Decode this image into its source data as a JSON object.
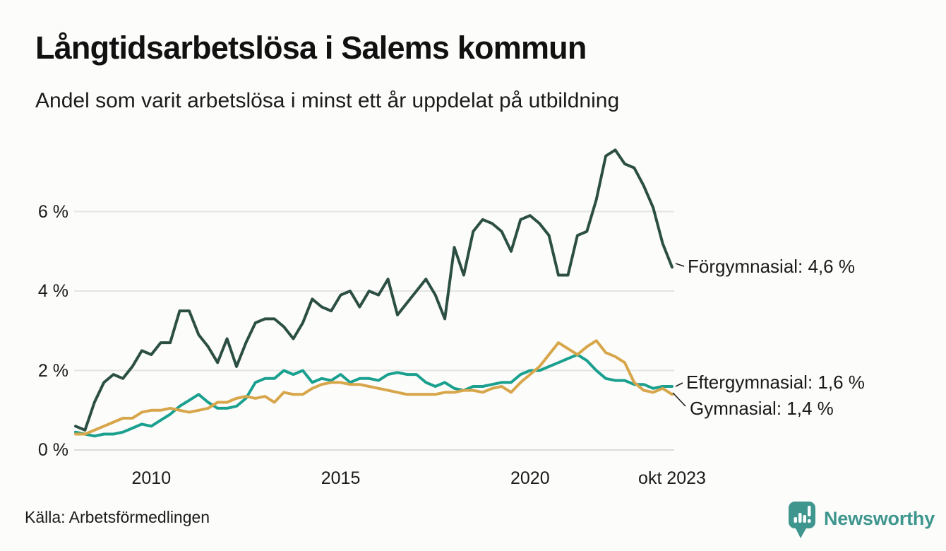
{
  "header": {
    "title": "Långtidsarbetslösa i Salems kommun",
    "subtitle": "Andel som varit arbetslösa i minst ett år uppdelat på utbildning"
  },
  "chart_data": {
    "type": "line",
    "title": "Långtidsarbetslösa i Salems kommun",
    "subtitle": "Andel som varit arbetslösa i minst ett år uppdelat på utbildning",
    "unit": "%",
    "grid": "horizontal-only",
    "legend_position": "right-end-labels",
    "x_axis": {
      "ticks": [
        {
          "label": "2010",
          "year": 2010
        },
        {
          "label": "2015",
          "year": 2015
        },
        {
          "label": "2020",
          "year": 2020
        },
        {
          "label": "okt 2023",
          "year": 2023.75
        }
      ]
    },
    "y_axis": {
      "ticks": [
        {
          "label": "0 %",
          "value": 0
        },
        {
          "label": "2 %",
          "value": 2
        },
        {
          "label": "4 %",
          "value": 4
        },
        {
          "label": "6 %",
          "value": 6
        }
      ],
      "range": [
        0,
        7.8
      ]
    },
    "time_range": {
      "start": 2008.0,
      "end": 2023.75,
      "step": 0.25,
      "note": "quarterly estimates read from monthly line, Jan 2008 - Oct 2023"
    },
    "series": [
      {
        "name": "Förgymnasial",
        "color": "#2c4f44",
        "end_label": "Förgymnasial: 4,6 %",
        "end_value": "4,6 %",
        "values": [
          0.6,
          0.5,
          1.2,
          1.7,
          1.9,
          1.8,
          2.1,
          2.5,
          2.4,
          2.7,
          2.7,
          3.5,
          3.5,
          2.9,
          2.6,
          2.2,
          2.8,
          2.1,
          2.7,
          3.2,
          3.3,
          3.3,
          3.1,
          2.8,
          3.2,
          3.8,
          3.6,
          3.5,
          3.9,
          4.0,
          3.6,
          4.0,
          3.9,
          4.3,
          3.4,
          3.7,
          4.0,
          4.3,
          3.9,
          3.3,
          5.1,
          4.4,
          5.5,
          5.8,
          5.7,
          5.5,
          5.0,
          5.8,
          5.9,
          5.7,
          5.4,
          4.4,
          4.4,
          5.4,
          5.5,
          6.3,
          7.4,
          7.55,
          7.2,
          7.1,
          6.65,
          6.1,
          5.2,
          4.6
        ]
      },
      {
        "name": "Eftergymnasial",
        "color": "#1aa08f",
        "end_label": "Eftergymnasial: 1,6 %",
        "end_value": "1,6 %",
        "values": [
          0.45,
          0.4,
          0.35,
          0.4,
          0.4,
          0.45,
          0.55,
          0.65,
          0.6,
          0.75,
          0.9,
          1.1,
          1.25,
          1.4,
          1.2,
          1.05,
          1.05,
          1.1,
          1.3,
          1.7,
          1.8,
          1.8,
          2.0,
          1.9,
          2.0,
          1.7,
          1.8,
          1.75,
          1.9,
          1.7,
          1.8,
          1.8,
          1.75,
          1.9,
          1.95,
          1.9,
          1.9,
          1.7,
          1.6,
          1.7,
          1.55,
          1.5,
          1.6,
          1.6,
          1.65,
          1.7,
          1.7,
          1.9,
          2.0,
          2.0,
          2.1,
          2.2,
          2.3,
          2.4,
          2.25,
          2.0,
          1.8,
          1.75,
          1.75,
          1.65,
          1.65,
          1.55,
          1.6,
          1.6
        ]
      },
      {
        "name": "Gymnasial",
        "color": "#d8a64a",
        "end_label": "Gymnasial: 1,4 %",
        "end_value": "1,4 %",
        "values": [
          0.4,
          0.4,
          0.5,
          0.6,
          0.7,
          0.8,
          0.8,
          0.95,
          1.0,
          1.0,
          1.05,
          1.0,
          0.95,
          1.0,
          1.05,
          1.2,
          1.2,
          1.3,
          1.35,
          1.3,
          1.35,
          1.2,
          1.45,
          1.4,
          1.4,
          1.55,
          1.65,
          1.7,
          1.7,
          1.65,
          1.65,
          1.6,
          1.55,
          1.5,
          1.45,
          1.4,
          1.4,
          1.4,
          1.4,
          1.45,
          1.45,
          1.5,
          1.5,
          1.45,
          1.55,
          1.6,
          1.45,
          1.7,
          1.9,
          2.1,
          2.4,
          2.7,
          2.55,
          2.4,
          2.6,
          2.75,
          2.45,
          2.35,
          2.2,
          1.7,
          1.5,
          1.45,
          1.55,
          1.4
        ]
      }
    ]
  },
  "footer": {
    "source": "Källa: Arbetsförmedlingen",
    "brand": "Newsworthy"
  },
  "colors": {
    "background": "#fcfcfa",
    "text": "#1b1b1b",
    "gridline": "#e4e4e4",
    "baseline": "#dcdcdc",
    "series_forgymnasial": "#2c4f44",
    "series_eftergymnasial": "#1aa08f",
    "series_gymnasial": "#d8a64a",
    "brand_teal": "#3e968e"
  }
}
